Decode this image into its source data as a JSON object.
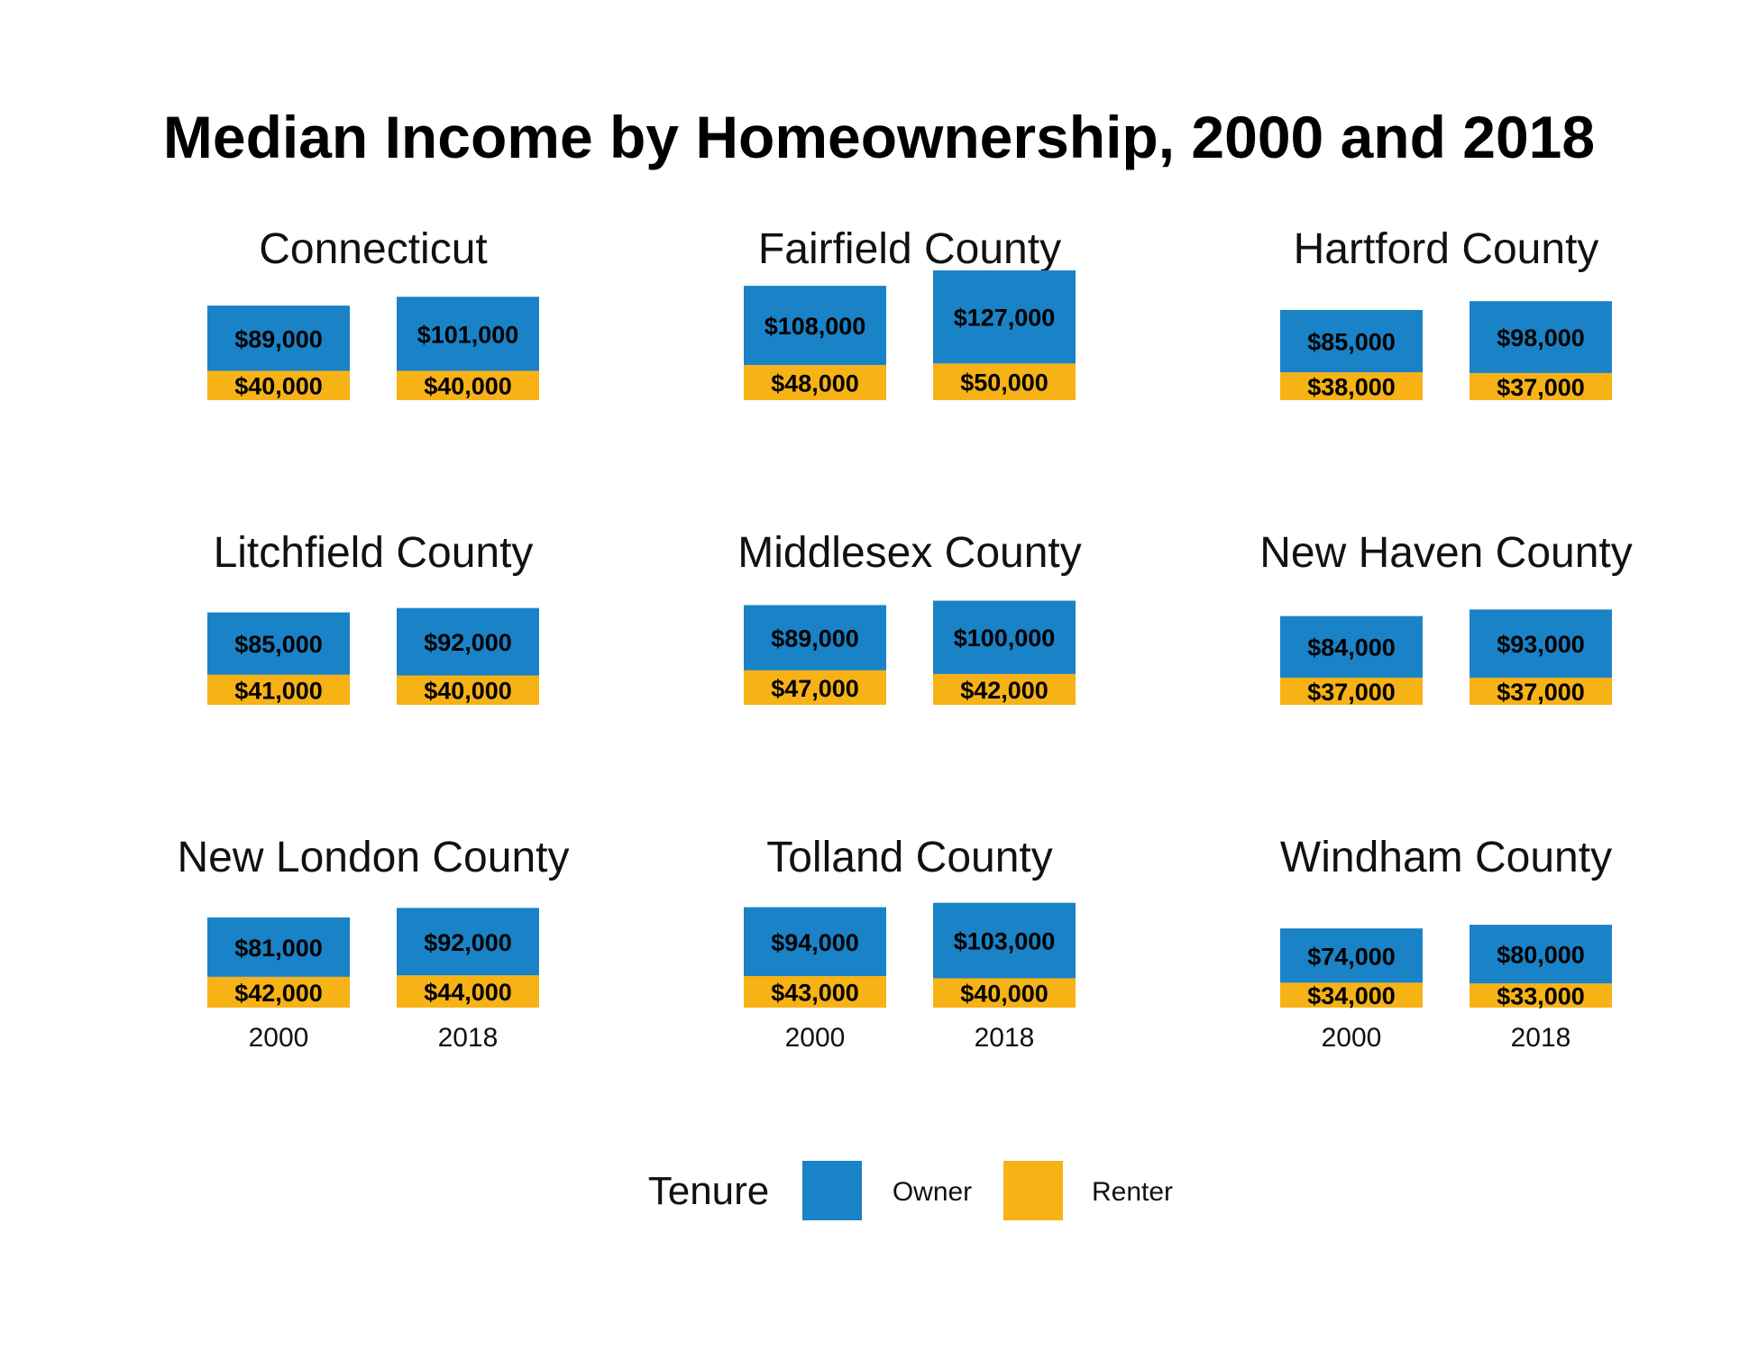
{
  "colors": {
    "Owner": "#1a82c6",
    "Renter": "#f7b215"
  },
  "chart_data": {
    "type": "bar",
    "stacked": true,
    "title": "Median Income by Homeownership, 2000 and 2018",
    "categories": [
      "2000",
      "2018"
    ],
    "series_names": [
      "Owner",
      "Renter"
    ],
    "legend": {
      "title": "Tenure",
      "entries": [
        "Owner",
        "Renter"
      ],
      "placement": "bottom"
    },
    "panels": [
      {
        "name": "Connecticut",
        "show_ticks": false,
        "owner": [
          89000,
          101000
        ],
        "renter": [
          40000,
          40000
        ],
        "owner_labels": [
          "$89,000",
          "$101,000"
        ],
        "renter_labels": [
          "$40,000",
          "$40,000"
        ]
      },
      {
        "name": "Fairfield County",
        "show_ticks": false,
        "owner": [
          108000,
          127000
        ],
        "renter": [
          48000,
          50000
        ],
        "owner_labels": [
          "$108,000",
          "$127,000"
        ],
        "renter_labels": [
          "$48,000",
          "$50,000"
        ]
      },
      {
        "name": "Hartford County",
        "show_ticks": false,
        "owner": [
          85000,
          98000
        ],
        "renter": [
          38000,
          37000
        ],
        "owner_labels": [
          "$85,000",
          "$98,000"
        ],
        "renter_labels": [
          "$38,000",
          "$37,000"
        ]
      },
      {
        "name": "Litchfield County",
        "show_ticks": false,
        "owner": [
          85000,
          92000
        ],
        "renter": [
          41000,
          40000
        ],
        "owner_labels": [
          "$85,000",
          "$92,000"
        ],
        "renter_labels": [
          "$41,000",
          "$40,000"
        ]
      },
      {
        "name": "Middlesex County",
        "show_ticks": false,
        "owner": [
          89000,
          100000
        ],
        "renter": [
          47000,
          42000
        ],
        "owner_labels": [
          "$89,000",
          "$100,000"
        ],
        "renter_labels": [
          "$47,000",
          "$42,000"
        ]
      },
      {
        "name": "New Haven County",
        "show_ticks": false,
        "owner": [
          84000,
          93000
        ],
        "renter": [
          37000,
          37000
        ],
        "owner_labels": [
          "$84,000",
          "$93,000"
        ],
        "renter_labels": [
          "$37,000",
          "$37,000"
        ]
      },
      {
        "name": "New London County",
        "show_ticks": true,
        "owner": [
          81000,
          92000
        ],
        "renter": [
          42000,
          44000
        ],
        "owner_labels": [
          "$81,000",
          "$92,000"
        ],
        "renter_labels": [
          "$42,000",
          "$44,000"
        ]
      },
      {
        "name": "Tolland County",
        "show_ticks": true,
        "owner": [
          94000,
          103000
        ],
        "renter": [
          43000,
          40000
        ],
        "owner_labels": [
          "$94,000",
          "$103,000"
        ],
        "renter_labels": [
          "$43,000",
          "$40,000"
        ]
      },
      {
        "name": "Windham County",
        "show_ticks": true,
        "owner": [
          74000,
          80000
        ],
        "renter": [
          34000,
          33000
        ],
        "owner_labels": [
          "$74,000",
          "$80,000"
        ],
        "renter_labels": [
          "$34,000",
          "$33,000"
        ]
      }
    ]
  }
}
